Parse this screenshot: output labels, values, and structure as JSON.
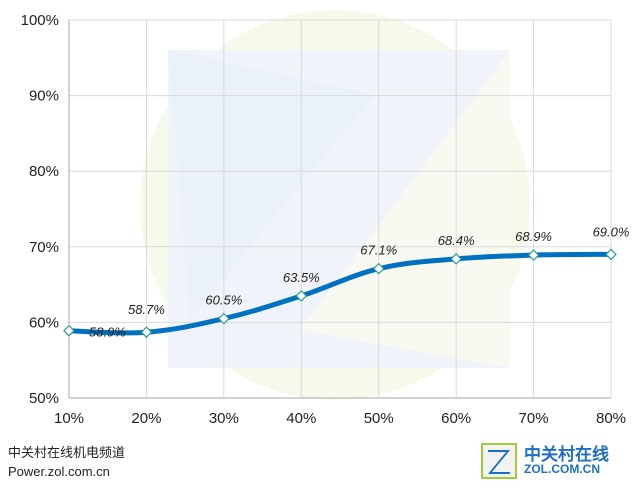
{
  "chart_data": {
    "type": "line",
    "title": "",
    "xlabel": "",
    "ylabel": "",
    "x": [
      10,
      20,
      30,
      40,
      50,
      60,
      70,
      80
    ],
    "x_tick_labels": [
      "10%",
      "20%",
      "30%",
      "40%",
      "50%",
      "60%",
      "70%",
      "80%"
    ],
    "y_tick_labels": [
      "50%",
      "60%",
      "70%",
      "80%",
      "90%",
      "100%"
    ],
    "y_ticks": [
      50,
      60,
      70,
      80,
      90,
      100
    ],
    "ylim": [
      50,
      100
    ],
    "xlim": [
      10,
      80
    ],
    "grid": true,
    "series": [
      {
        "values": [
          58.9,
          58.7,
          60.5,
          63.5,
          67.1,
          68.4,
          68.9,
          69.0
        ],
        "data_labels": [
          "58.9%",
          "58.7%",
          "60.5%",
          "63.5%",
          "67.1%",
          "68.4%",
          "68.9%",
          "69.0%"
        ],
        "color": "#0070c0",
        "marker": "diamond-open"
      }
    ]
  },
  "footer": {
    "line1": "中关村在线机电频道",
    "line2": "Power.zol.com.cn"
  },
  "brand": {
    "name": "中关村在线",
    "domain": "ZOL.COM.CN",
    "logo_letter": "Z"
  },
  "colors": {
    "line": "#0070c0",
    "grid": "#d9d9d9",
    "brand": "#1d6fc2"
  }
}
